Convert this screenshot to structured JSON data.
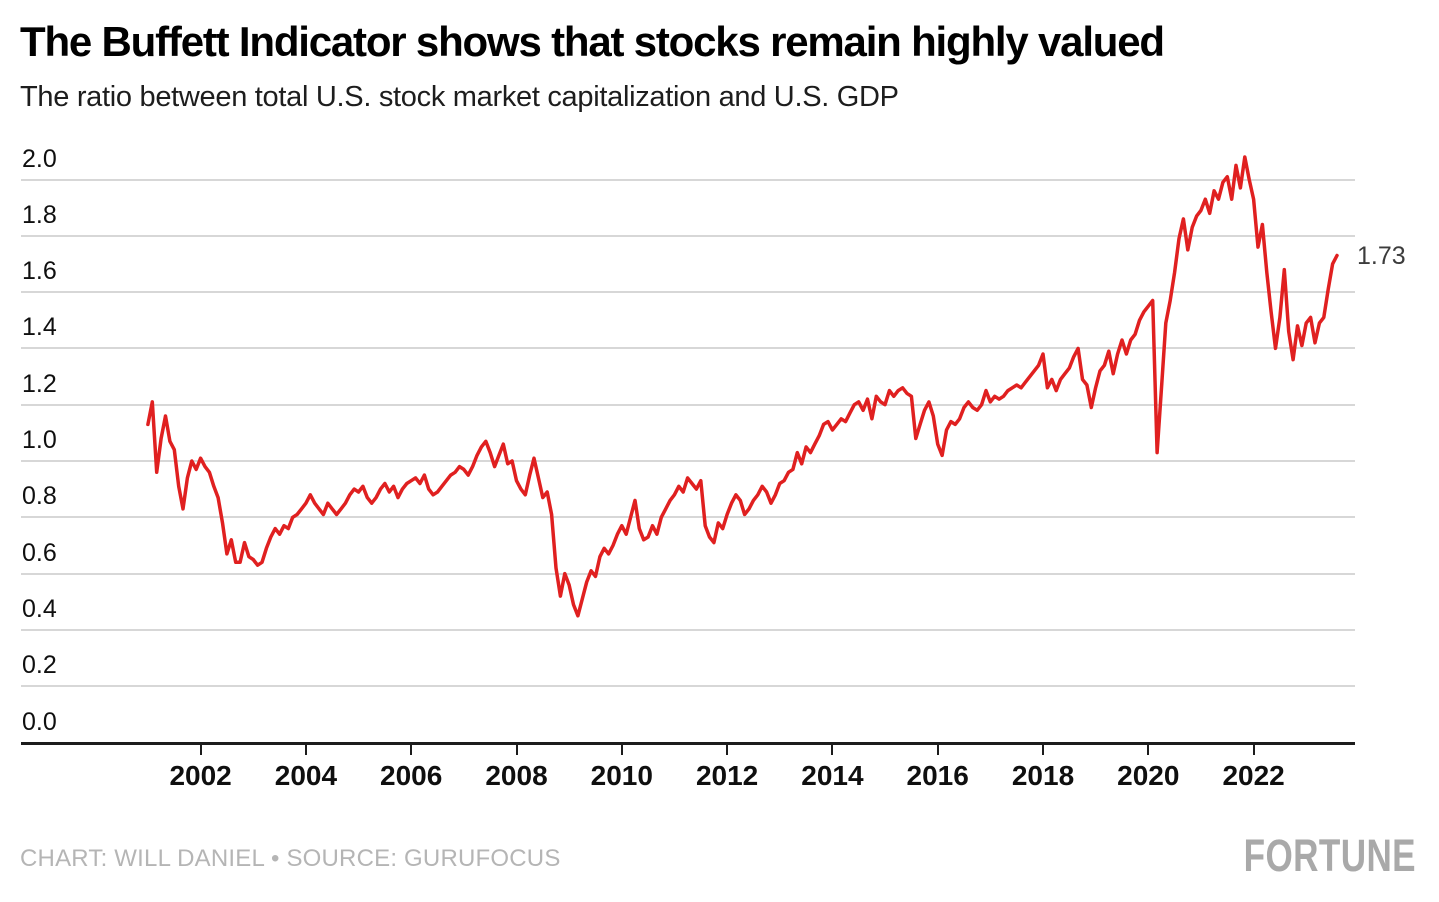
{
  "header": {
    "title": "The Buffett Indicator shows that stocks remain highly valued",
    "subtitle": "The ratio between total U.S. stock market capitalization and U.S. GDP"
  },
  "chart_data": {
    "type": "line",
    "title": "The Buffett Indicator shows that stocks remain highly valued",
    "subtitle": "The ratio between total U.S. stock market capitalization and U.S. GDP",
    "xlabel": "",
    "ylabel": "",
    "xlim": [
      2001.0,
      2023.7
    ],
    "ylim": [
      0.0,
      2.1
    ],
    "grid": "horizontal",
    "legend": "none",
    "y_ticks": [
      "2.0",
      "1.8",
      "1.6",
      "1.4",
      "1.2",
      "1.0",
      "0.8",
      "0.6",
      "0.4",
      "0.2",
      "0.0"
    ],
    "x_ticks": [
      "2002",
      "2004",
      "2006",
      "2008",
      "2010",
      "2012",
      "2014",
      "2016",
      "2018",
      "2020",
      "2022"
    ],
    "end_label": "1.73",
    "line_color": "#e02020",
    "series": [
      {
        "name": "Total U.S. market cap / U.S. GDP",
        "color": "#e02020",
        "x_start": 2001.0,
        "x_step": 0.0833333,
        "values": [
          1.13,
          1.21,
          0.96,
          1.08,
          1.16,
          1.07,
          1.04,
          0.91,
          0.83,
          0.94,
          1.0,
          0.97,
          1.01,
          0.98,
          0.96,
          0.91,
          0.87,
          0.78,
          0.67,
          0.72,
          0.64,
          0.64,
          0.71,
          0.66,
          0.65,
          0.63,
          0.64,
          0.69,
          0.73,
          0.76,
          0.74,
          0.77,
          0.76,
          0.8,
          0.81,
          0.83,
          0.85,
          0.88,
          0.85,
          0.83,
          0.81,
          0.85,
          0.83,
          0.81,
          0.83,
          0.85,
          0.88,
          0.9,
          0.89,
          0.91,
          0.87,
          0.85,
          0.87,
          0.9,
          0.92,
          0.89,
          0.91,
          0.87,
          0.9,
          0.92,
          0.93,
          0.94,
          0.92,
          0.95,
          0.9,
          0.88,
          0.89,
          0.91,
          0.93,
          0.95,
          0.96,
          0.98,
          0.97,
          0.95,
          0.98,
          1.02,
          1.05,
          1.07,
          1.03,
          0.98,
          1.02,
          1.06,
          0.99,
          1.0,
          0.93,
          0.9,
          0.88,
          0.95,
          1.01,
          0.94,
          0.87,
          0.89,
          0.81,
          0.62,
          0.52,
          0.6,
          0.56,
          0.49,
          0.45,
          0.51,
          0.57,
          0.61,
          0.59,
          0.66,
          0.69,
          0.67,
          0.7,
          0.74,
          0.77,
          0.74,
          0.8,
          0.86,
          0.76,
          0.72,
          0.73,
          0.77,
          0.74,
          0.8,
          0.83,
          0.86,
          0.88,
          0.91,
          0.89,
          0.94,
          0.92,
          0.9,
          0.93,
          0.77,
          0.73,
          0.71,
          0.78,
          0.76,
          0.81,
          0.85,
          0.88,
          0.86,
          0.81,
          0.83,
          0.86,
          0.88,
          0.91,
          0.89,
          0.85,
          0.88,
          0.92,
          0.93,
          0.96,
          0.97,
          1.03,
          0.99,
          1.05,
          1.03,
          1.06,
          1.09,
          1.13,
          1.14,
          1.11,
          1.13,
          1.15,
          1.14,
          1.17,
          1.2,
          1.21,
          1.18,
          1.22,
          1.15,
          1.23,
          1.21,
          1.2,
          1.25,
          1.23,
          1.25,
          1.26,
          1.24,
          1.23,
          1.08,
          1.13,
          1.18,
          1.21,
          1.16,
          1.06,
          1.02,
          1.11,
          1.14,
          1.13,
          1.15,
          1.19,
          1.21,
          1.19,
          1.18,
          1.2,
          1.25,
          1.21,
          1.23,
          1.22,
          1.23,
          1.25,
          1.26,
          1.27,
          1.26,
          1.28,
          1.3,
          1.32,
          1.34,
          1.38,
          1.26,
          1.29,
          1.25,
          1.29,
          1.31,
          1.33,
          1.37,
          1.4,
          1.29,
          1.27,
          1.19,
          1.26,
          1.32,
          1.34,
          1.39,
          1.31,
          1.38,
          1.43,
          1.38,
          1.43,
          1.45,
          1.5,
          1.53,
          1.55,
          1.57,
          1.03,
          1.26,
          1.49,
          1.57,
          1.67,
          1.79,
          1.86,
          1.75,
          1.83,
          1.87,
          1.89,
          1.93,
          1.88,
          1.96,
          1.93,
          1.99,
          2.01,
          1.93,
          2.05,
          1.97,
          2.08,
          2.0,
          1.93,
          1.76,
          1.84,
          1.67,
          1.53,
          1.4,
          1.51,
          1.68,
          1.46,
          1.36,
          1.48,
          1.41,
          1.49,
          1.51,
          1.42,
          1.49,
          1.51,
          1.61,
          1.7,
          1.73
        ]
      }
    ]
  },
  "footer": {
    "credit": "CHART: WILL DANIEL • SOURCE: GURUFOCUS",
    "brand": "FORTUNE"
  }
}
